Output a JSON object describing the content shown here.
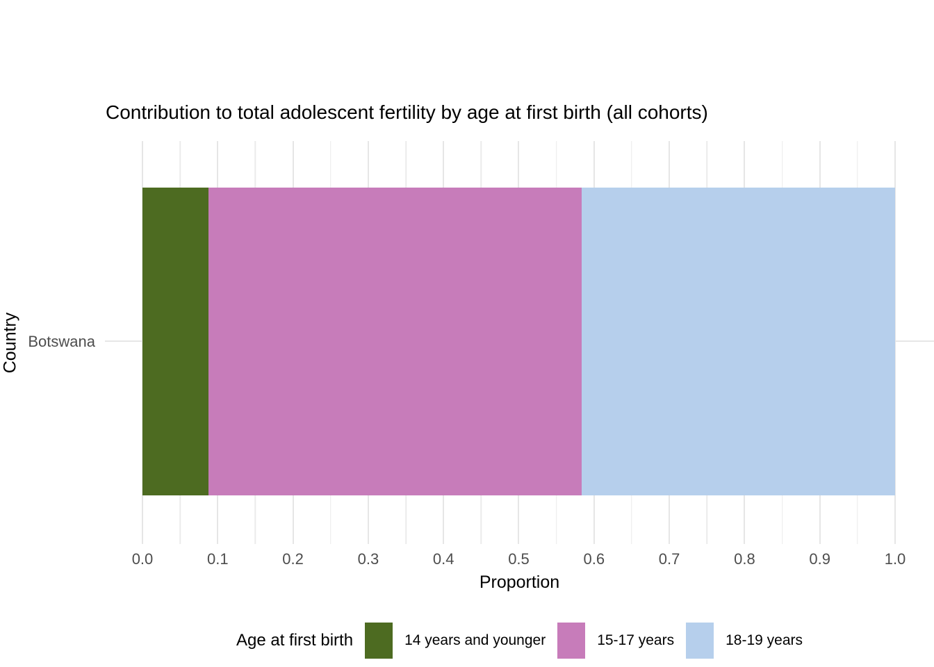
{
  "title": "Contribution to total adolescent fertility by age at first birth (all cohorts)",
  "x_axis": {
    "label": "Proportion",
    "tick_labels": [
      "0.0",
      "0.1",
      "0.2",
      "0.3",
      "0.4",
      "0.5",
      "0.6",
      "0.7",
      "0.8",
      "0.9",
      "1.0"
    ],
    "tick_values": [
      0,
      0.1,
      0.2,
      0.3,
      0.4,
      0.5,
      0.6,
      0.7,
      0.8,
      0.9,
      1.0
    ],
    "range": [
      0,
      1
    ]
  },
  "y_axis": {
    "label": "Country",
    "categories": [
      "Botswana"
    ]
  },
  "legend": {
    "title": "Age at first birth",
    "position": "bottom",
    "items": [
      {
        "label": "14 years and younger",
        "color": "#4d6b21"
      },
      {
        "label": "15-17 years",
        "color": "#c77cba"
      },
      {
        "label": "18-19 years",
        "color": "#b6cfec"
      }
    ]
  },
  "colors": {
    "background": "#ffffff",
    "grid_major": "#e6e6e6",
    "grid_minor": "#ebebeb",
    "axis_text": "#4d4d4d",
    "text": "#000000"
  },
  "chart_data": {
    "type": "bar",
    "orientation": "horizontal",
    "stacked": true,
    "title": "Contribution to total adolescent fertility by age at first birth (all cohorts)",
    "xlabel": "Proportion",
    "ylabel": "Country",
    "categories": [
      "Botswana"
    ],
    "series": [
      {
        "name": "14 years and younger",
        "values": [
          0.088
        ],
        "color": "#4d6b21"
      },
      {
        "name": "15-17 years",
        "values": [
          0.496
        ],
        "color": "#c77cba"
      },
      {
        "name": "18-19 years",
        "values": [
          0.416
        ],
        "color": "#b6cfec"
      }
    ],
    "xlim": [
      0,
      1
    ],
    "x_ticks": [
      0,
      0.1,
      0.2,
      0.3,
      0.4,
      0.5,
      0.6,
      0.7,
      0.8,
      0.9,
      1.0
    ],
    "x_minor_tick_step": 0.05,
    "grid": true,
    "legend_position": "bottom"
  }
}
